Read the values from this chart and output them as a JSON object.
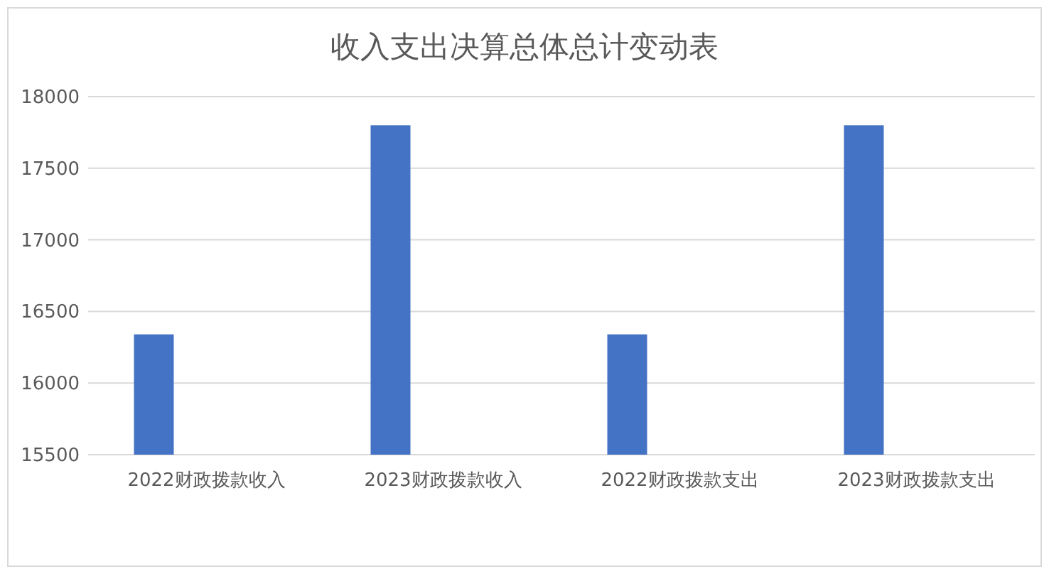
{
  "chart_data": {
    "type": "bar",
    "title": "收入支出决算总体总计变动表",
    "categories": [
      "2022财政拨款收入",
      "2023财政拨款收入",
      "2022财政拨款支出",
      "2023财政拨款支出"
    ],
    "values": [
      16340,
      17800,
      16340,
      17800
    ],
    "color": "#4472c4",
    "ylim": [
      15500,
      18000
    ],
    "yticks": [
      15500,
      16000,
      16500,
      17000,
      17500,
      18000
    ],
    "grid": "y",
    "legend": false
  }
}
